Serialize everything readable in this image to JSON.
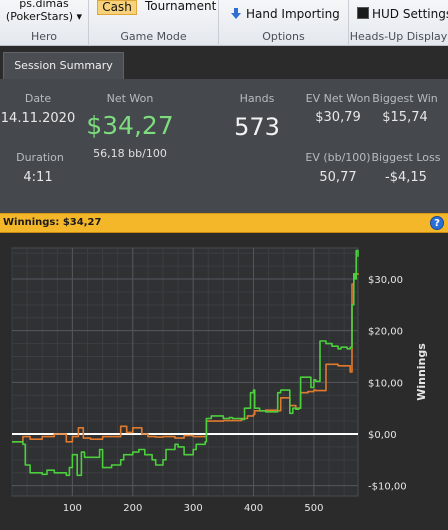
{
  "ribbon": {
    "hero": {
      "name": "ps.dimas",
      "site": "(PokerStars) ▾",
      "caption": "Hero"
    },
    "game_mode": {
      "cash_label": "Cash",
      "tournament_label": "Tournament",
      "caption": "Game Mode"
    },
    "options": {
      "hand_importing_label": "Hand Importing",
      "caption": "Options"
    },
    "hud": {
      "settings_label": "HUD Settings",
      "caption": "Heads-Up Display"
    }
  },
  "tab": {
    "label": "Session Summary"
  },
  "summary": {
    "date_label": "Date",
    "date_value": "14.11.2020",
    "duration_label": "Duration",
    "duration_value": "4:11",
    "net_won_label": "Net Won",
    "net_won_value": "$34,27",
    "bb100_value": "56,18 bb/100",
    "hands_label": "Hands",
    "hands_value": "573",
    "ev_net_won_label": "EV Net Won",
    "ev_net_won_value": "$30,79",
    "biggest_win_label": "Biggest Win",
    "biggest_win_value": "$15,74",
    "ev_bb100_label": "EV (bb/100)",
    "ev_bb100_value": "50,77",
    "biggest_loss_label": "Biggest Loss",
    "biggest_loss_value": "-$4,15"
  },
  "winnings_bar": {
    "text": "Winnings: $34,27",
    "help_label": "?"
  },
  "chart_data": {
    "type": "line",
    "ylabel": "Winnings",
    "xlim": [
      0,
      573
    ],
    "ylim": [
      -12,
      36
    ],
    "xticks": [
      100,
      200,
      300,
      400,
      500
    ],
    "yticks": [
      -10,
      0,
      10,
      20,
      30
    ],
    "ytick_labels": [
      "-$10,00",
      "$0,00",
      "$10,00",
      "$20,00",
      "$30,00"
    ],
    "grid": true,
    "colors": {
      "net_won": "#4ccf3c",
      "ev": "#e07a2e",
      "zero": "#ffffff"
    },
    "series": [
      {
        "key": "net_won",
        "x": [
          0,
          18,
          22,
          30,
          50,
          58,
          70,
          90,
          95,
          100,
          108,
          115,
          120,
          145,
          150,
          165,
          180,
          185,
          200,
          210,
          220,
          232,
          238,
          250,
          255,
          270,
          275,
          285,
          300,
          305,
          320,
          322,
          330,
          350,
          360,
          365,
          380,
          385,
          395,
          400,
          402,
          410,
          420,
          440,
          445,
          460,
          465,
          470,
          475,
          478,
          490,
          495,
          500,
          503,
          510,
          520,
          530,
          540,
          545,
          555,
          560,
          563,
          566,
          568,
          570,
          573
        ],
        "y": [
          -1.5,
          -2,
          -6,
          -7.5,
          -7.8,
          -7,
          -7.5,
          -8,
          -6.5,
          -4,
          -8,
          -3.5,
          -4.5,
          -3,
          -6.5,
          -6,
          -5,
          -4,
          -3.5,
          -3,
          -4,
          -5,
          -6,
          -5,
          -3,
          -2,
          -2.5,
          -4,
          -3,
          -2,
          -1.5,
          3,
          3.5,
          3,
          3.2,
          3,
          2.8,
          5,
          8,
          8.5,
          5,
          4.5,
          4.3,
          8,
          8.5,
          4,
          5,
          4.8,
          5,
          11,
          11,
          9,
          10.5,
          10.2,
          18,
          17.5,
          17,
          16.5,
          16.8,
          16.5,
          16.8,
          25,
          31,
          30,
          35.5,
          34.3
        ]
      },
      {
        "key": "ev",
        "x": [
          0,
          18,
          30,
          50,
          70,
          90,
          100,
          110,
          118,
          130,
          150,
          170,
          180,
          190,
          200,
          215,
          225,
          238,
          250,
          270,
          285,
          300,
          320,
          322,
          350,
          380,
          390,
          400,
          402,
          420,
          440,
          445,
          460,
          470,
          478,
          490,
          500,
          503,
          520,
          540,
          560,
          563,
          566,
          573
        ],
        "y": [
          -1.5,
          -0.5,
          -1,
          -0.5,
          0,
          -1.5,
          -0.5,
          1.2,
          -0.8,
          -1,
          -0.5,
          -0.5,
          1.5,
          0.3,
          1.2,
          0,
          -0.5,
          -0.6,
          -0.5,
          -0.8,
          -0.3,
          -0.5,
          -0.5,
          2.5,
          2.6,
          3,
          3.5,
          3.8,
          4.5,
          4.6,
          4.5,
          7,
          5.5,
          5,
          8,
          8.2,
          8.5,
          8.4,
          13.5,
          13.2,
          12,
          29,
          31,
          30.8
        ]
      }
    ]
  }
}
